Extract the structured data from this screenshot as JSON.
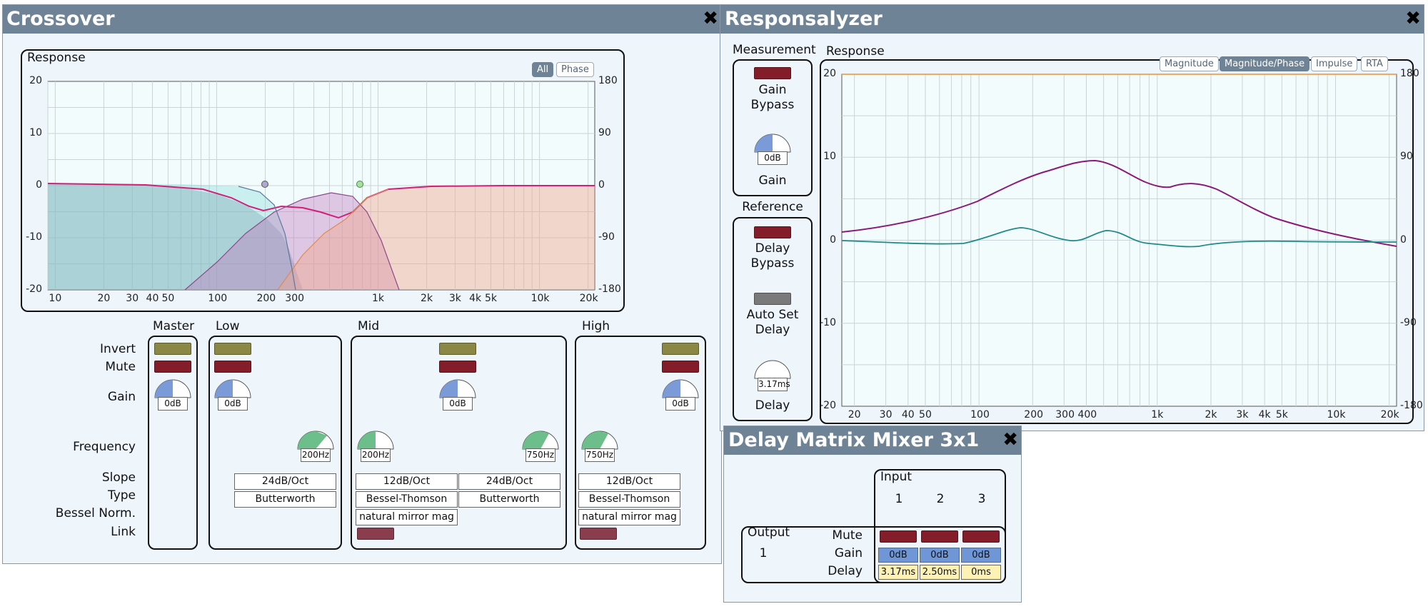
{
  "crossover": {
    "title": "Crossover",
    "close": "✖",
    "response": {
      "label": "Response",
      "toggles": [
        {
          "label": "All",
          "active": true
        },
        {
          "label": "Phase",
          "active": false
        }
      ],
      "y_left_ticks": [
        "20",
        "10",
        "0",
        "-10",
        "-20"
      ],
      "y_right_ticks": [
        "180",
        "90",
        "0",
        "-90",
        "-180"
      ],
      "x_ticks": [
        "10",
        "20",
        "30",
        "40",
        "50",
        "100",
        "200",
        "300",
        "1k",
        "2k",
        "3k",
        "4k",
        "5k",
        "10k",
        "20k"
      ]
    },
    "row_labels": [
      "Invert",
      "Mute",
      "Gain",
      "Frequency",
      "Slope",
      "Type",
      "Bessel Norm.",
      "Link"
    ],
    "master": {
      "label": "Master",
      "gain": "0dB"
    },
    "low": {
      "label": "Low",
      "gain": "0dB",
      "frequency": "200Hz",
      "slope": "24dB/Oct",
      "type": "Butterworth"
    },
    "mid": {
      "label": "Mid",
      "gain": "0dB",
      "freq_low": "200Hz",
      "freq_high": "750Hz",
      "slope_low": "12dB/Oct",
      "slope_high": "24dB/Oct",
      "type_low": "Bessel-Thomson",
      "type_high": "Butterworth",
      "bessel_norm": "natural mirror mag"
    },
    "high": {
      "label": "High",
      "gain": "0dB",
      "frequency": "750Hz",
      "slope": "12dB/Oct",
      "type": "Bessel-Thomson",
      "bessel_norm": "natural mirror mag"
    },
    "colors": {
      "invert": "#8a8844",
      "mute": "#841d2a",
      "gain_knob": "#7a9ad8",
      "freq_knob": "#6cbf8a"
    }
  },
  "responsalyzer": {
    "title": "Responsalyzer",
    "close": "✖",
    "measurement": {
      "label": "Measurement",
      "gain_bypass": "Gain Bypass",
      "gain_value": "0dB",
      "gain_label": "Gain"
    },
    "reference": {
      "label": "Reference",
      "delay_bypass": "Delay Bypass",
      "auto_set": "Auto Set Delay",
      "delay_value": "3.17ms",
      "delay_label": "Delay"
    },
    "response": {
      "label": "Response",
      "tabs": [
        {
          "label": "Magnitude",
          "active": false
        },
        {
          "label": "Magnitude/Phase",
          "active": true
        },
        {
          "label": "Impulse",
          "active": false
        },
        {
          "label": "RTA",
          "active": false
        }
      ],
      "y_left_ticks": [
        "20",
        "10",
        "0",
        "-10",
        "-20"
      ],
      "y_right_ticks": [
        "180",
        "90",
        "0",
        "-90",
        "-180"
      ],
      "x_ticks": [
        "20",
        "30",
        "40",
        "50",
        "100",
        "200",
        "300",
        "400",
        "1k",
        "2k",
        "3k",
        "4k",
        "5k",
        "10k",
        "20k"
      ]
    }
  },
  "delay_matrix": {
    "title": "Delay Matrix Mixer 3x1",
    "close": "✖",
    "input_label": "Input",
    "output_label": "Output",
    "inputs": [
      "1",
      "2",
      "3"
    ],
    "output_index": "1",
    "row_labels": [
      "Mute",
      "Gain",
      "Delay"
    ],
    "gains": [
      "0dB",
      "0dB",
      "0dB"
    ],
    "delays": [
      "3.17ms",
      "2.50ms",
      "0ms"
    ]
  }
}
